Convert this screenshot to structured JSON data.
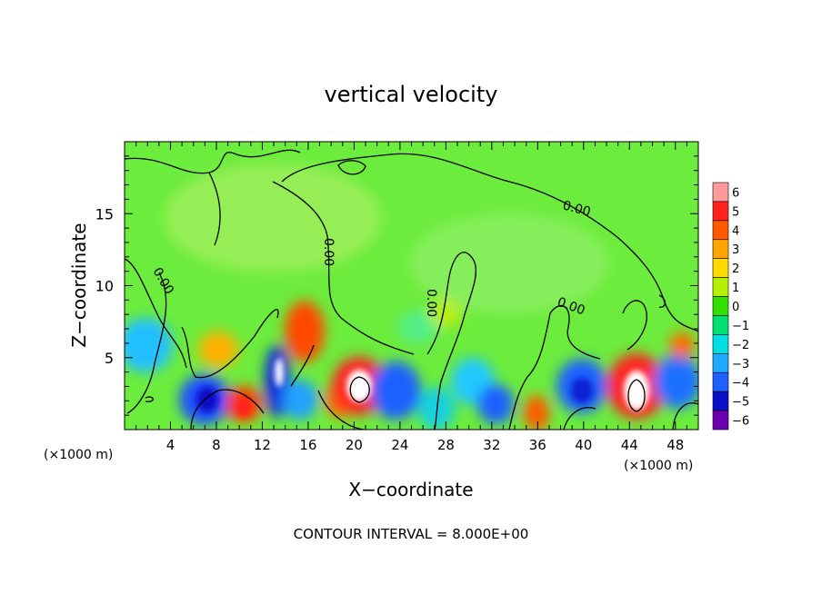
{
  "chart_data": {
    "type": "heatmap",
    "title": "vertical velocity",
    "xlabel": "X−coordinate",
    "ylabel": "Z−coordinate",
    "x_unit_left": "(×1000 m)",
    "x_unit_right": "(×1000 m)",
    "x_ticks": [
      "4",
      "8",
      "12",
      "16",
      "20",
      "24",
      "28",
      "32",
      "36",
      "40",
      "44",
      "48"
    ],
    "x_tick_values": [
      4,
      8,
      12,
      16,
      20,
      24,
      28,
      32,
      36,
      40,
      44,
      48
    ],
    "y_ticks": [
      "5",
      "10",
      "15"
    ],
    "y_tick_values": [
      5,
      10,
      15
    ],
    "xlim": [
      0,
      50
    ],
    "ylim": [
      0,
      20
    ],
    "colorbar_labels": [
      "6",
      "5",
      "4",
      "3",
      "2",
      "1",
      "0",
      "−1",
      "−2",
      "−3",
      "−4",
      "−5",
      "−6"
    ],
    "colorbar_values": [
      6,
      5,
      4,
      3,
      2,
      1,
      0,
      -1,
      -2,
      -3,
      -4,
      -5,
      -6
    ],
    "colorbar_colors": [
      "#ff9a9a",
      "#ff2020",
      "#ff5a00",
      "#ffa500",
      "#ffdc00",
      "#b6f000",
      "#32e000",
      "#00e070",
      "#00e0e0",
      "#1eaaff",
      "#2060ff",
      "#0a10c8",
      "#6a00b0"
    ],
    "contour_labels": [
      "0.00",
      "0.00",
      "0.00",
      "0.00",
      "0.00"
    ],
    "contour_interval_text": "CONTOUR INTERVAL = 8.000E+00",
    "features": [
      {
        "x": 20.3,
        "z": 3.0,
        "w": 7,
        "kind": "updraft"
      },
      {
        "x": 44.4,
        "z": 2.8,
        "w": 8,
        "kind": "updraft"
      },
      {
        "x": 13.7,
        "z": 4.0,
        "w": -7,
        "kind": "downdraft"
      },
      {
        "x": 7.6,
        "z": 2.0,
        "w": -4,
        "kind": "downdraft"
      },
      {
        "x": 24.8,
        "z": 2.4,
        "w": -4,
        "kind": "downdraft"
      },
      {
        "x": 39.5,
        "z": 2.6,
        "w": -4,
        "kind": "downdraft"
      },
      {
        "x": 10.4,
        "z": 1.9,
        "w": 4,
        "kind": "updraft"
      },
      {
        "x": 16.2,
        "z": 6.5,
        "w": 4,
        "kind": "updraft"
      },
      {
        "x": 35.6,
        "z": 1.5,
        "w": 4,
        "kind": "updraft"
      },
      {
        "x": 49.2,
        "z": 6.0,
        "w": 3,
        "kind": "updraft"
      }
    ]
  }
}
